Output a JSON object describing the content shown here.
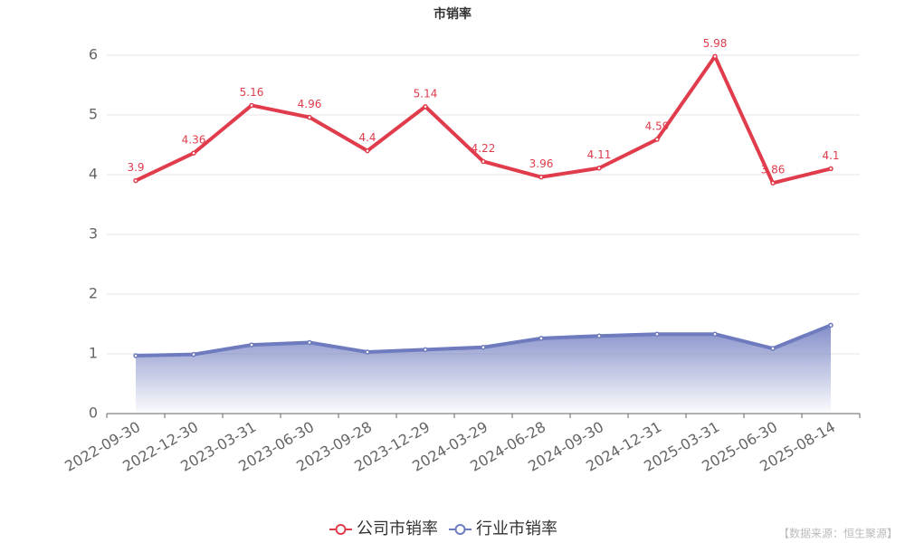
{
  "chart_data": {
    "type": "line",
    "title": "市销率",
    "categories": [
      "2022-09-30",
      "2022-12-30",
      "2023-03-31",
      "2023-06-30",
      "2023-09-28",
      "2023-12-29",
      "2024-03-29",
      "2024-06-28",
      "2024-09-30",
      "2024-12-31",
      "2025-03-31",
      "2025-06-30",
      "2025-08-14"
    ],
    "series": [
      {
        "name": "公司市销率",
        "color": "#e03c4c",
        "values": [
          3.9,
          4.36,
          5.16,
          4.96,
          4.4,
          5.14,
          4.22,
          3.96,
          4.11,
          4.59,
          5.98,
          3.86,
          4.1
        ],
        "labels": true
      },
      {
        "name": "行业市销率",
        "color": "#6e7bbf",
        "values": [
          0.97,
          0.99,
          1.15,
          1.19,
          1.03,
          1.07,
          1.11,
          1.26,
          1.3,
          1.33,
          1.33,
          1.09,
          1.48
        ],
        "area": true
      }
    ],
    "ylim": [
      0,
      6
    ],
    "yticks": [
      0,
      1,
      2,
      3,
      4,
      5,
      6
    ],
    "grid": true,
    "legend": "bottom",
    "source": "【数据来源：恒生聚源】"
  }
}
